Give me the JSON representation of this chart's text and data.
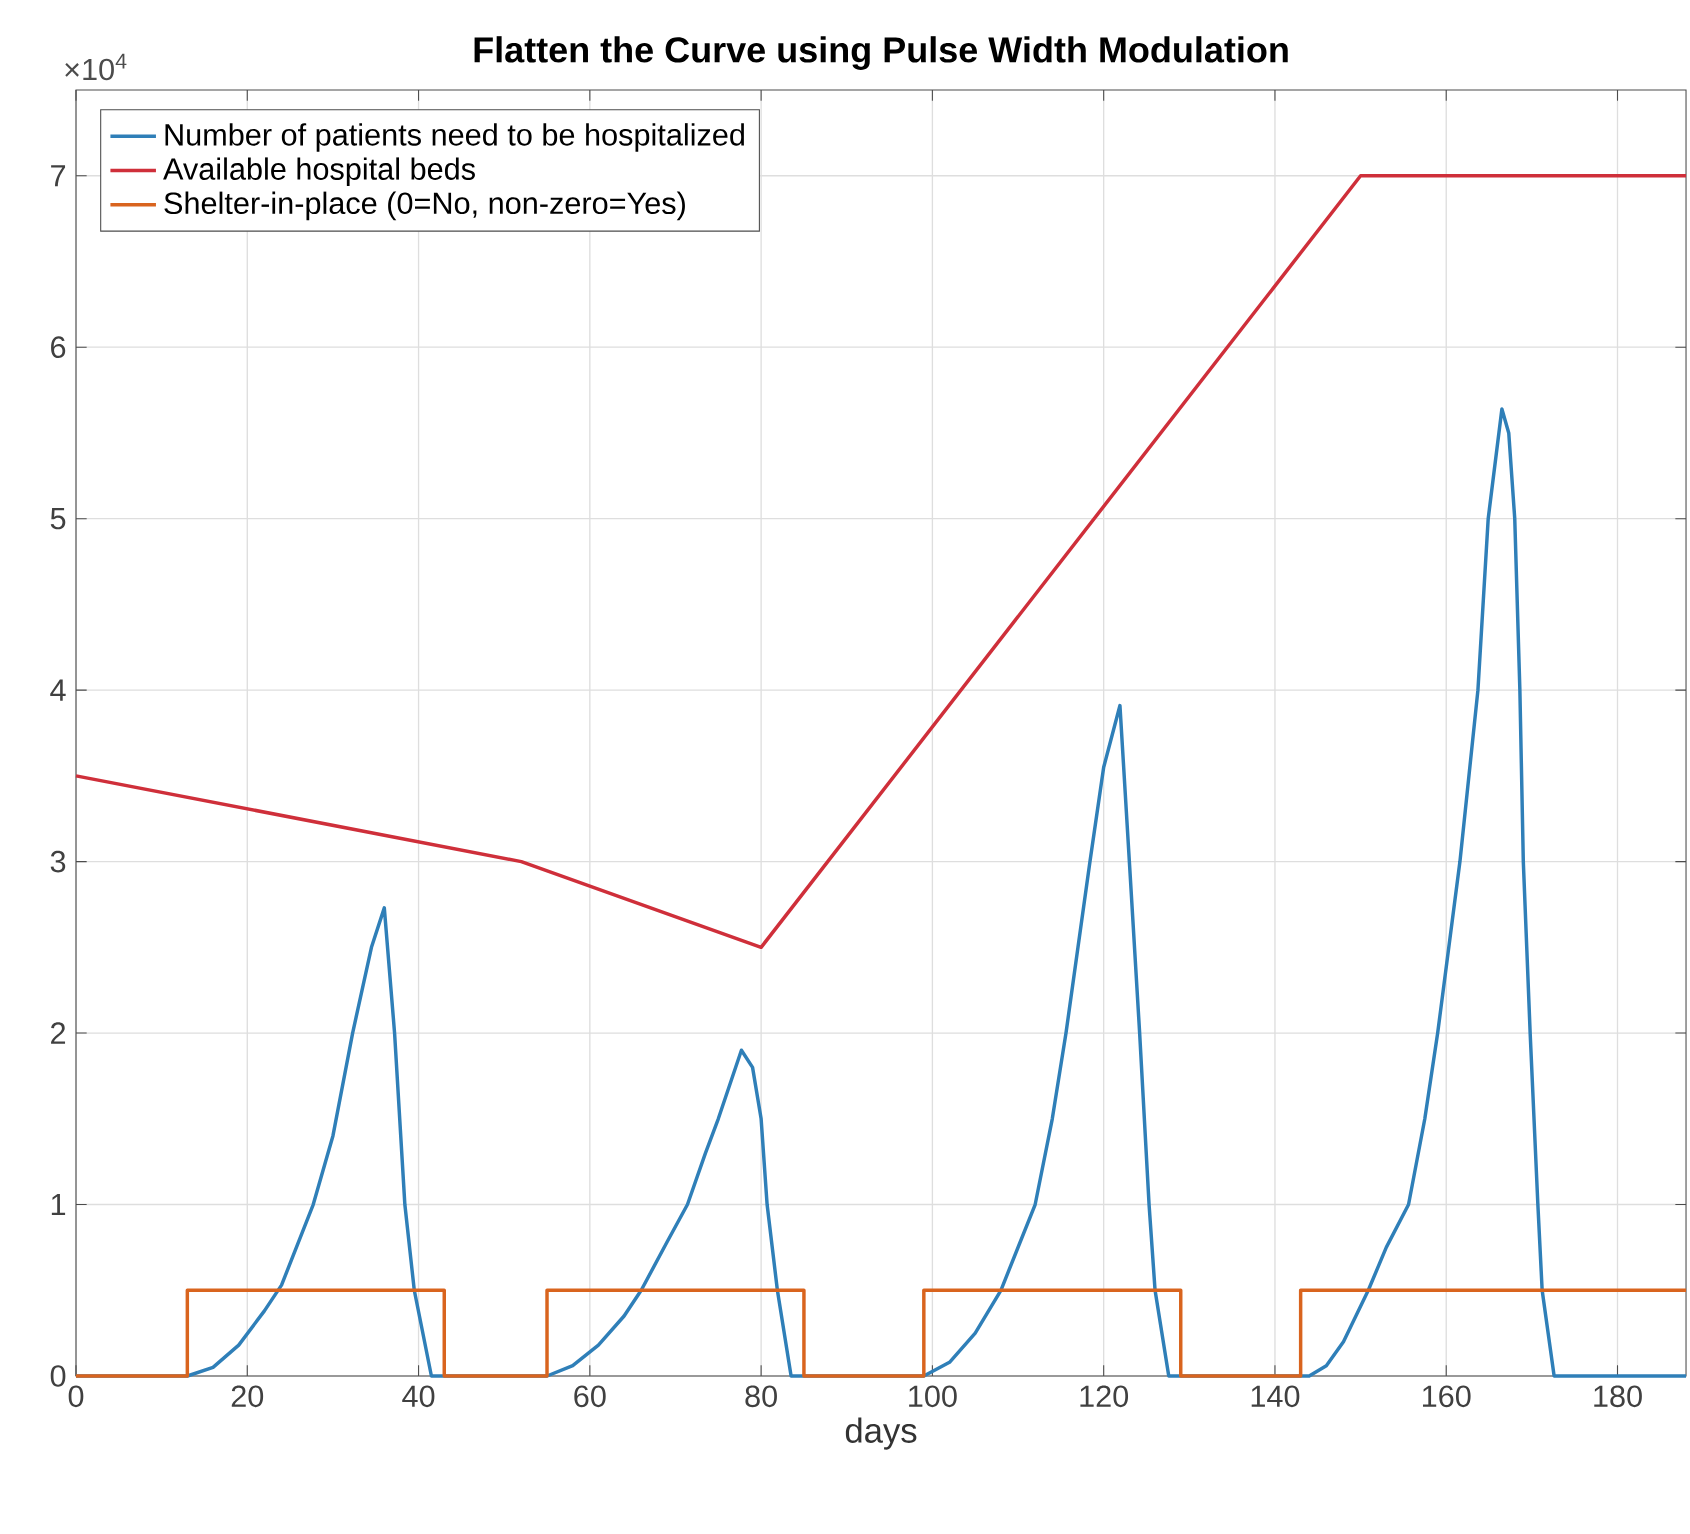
{
  "chart_data": {
    "type": "line",
    "title": "Flatten the Curve using Pulse Width Modulation",
    "xlabel": "days",
    "annotations": [
      "×10$^{4}$"
    ],
    "xlim": [
      0,
      188
    ],
    "ylim": [
      0,
      7.5
    ],
    "xticks": [
      0,
      20,
      40,
      60,
      80,
      100,
      120,
      140,
      160,
      180
    ],
    "yticks": [
      0,
      1,
      2,
      3,
      4,
      5,
      6,
      7
    ],
    "grid": true,
    "legend": "top left",
    "marker": "none",
    "line_style": "solid",
    "series": [
      {
        "name": "Number of patients need to be hospitalized",
        "color": "#2f7fb8",
        "x": [
          0,
          10,
          13,
          16,
          19,
          22,
          24,
          27.7,
          30,
          32.3,
          34.5,
          36,
          37.2,
          38.4,
          39.5,
          41.5,
          50,
          55,
          58,
          61,
          64,
          66,
          69,
          71.4,
          73.5,
          75,
          77.7,
          79,
          80,
          80.7,
          81.9,
          83.5,
          90,
          99,
          102,
          105,
          108,
          110,
          112,
          114,
          115.6,
          117,
          118.4,
          120,
          121.9,
          123,
          124.2,
          125.3,
          126,
          127.6,
          135,
          144,
          146,
          148,
          150.9,
          153,
          155.6,
          157.5,
          159,
          161.6,
          163.7,
          164.9,
          166.5,
          167.3,
          168,
          168.6,
          169,
          169.8,
          170.7,
          171.2,
          172.6,
          188
        ],
        "values": [
          0,
          0,
          0,
          0.05,
          0.18,
          0.38,
          0.53,
          1.0,
          1.4,
          2.0,
          2.5,
          2.73,
          2.0,
          1.0,
          0.5,
          0,
          0,
          0,
          0.06,
          0.18,
          0.35,
          0.5,
          0.78,
          1.0,
          1.3,
          1.5,
          1.9,
          1.8,
          1.5,
          1.0,
          0.5,
          0,
          0,
          0,
          0.08,
          0.25,
          0.5,
          0.75,
          1.0,
          1.5,
          2.0,
          2.5,
          3.0,
          3.55,
          3.91,
          3.0,
          2.0,
          1.0,
          0.5,
          0,
          0,
          0,
          0.06,
          0.2,
          0.5,
          0.75,
          1.0,
          1.5,
          2.0,
          3.0,
          4.0,
          5.0,
          5.64,
          5.5,
          5.0,
          4.0,
          3.0,
          2.0,
          1.0,
          0.5,
          0,
          0
        ]
      },
      {
        "name": "Available hospital beds",
        "color": "#cf2f3a",
        "x": [
          0,
          52,
          80,
          150,
          188
        ],
        "values": [
          3.5,
          3.0,
          2.5,
          7,
          7
        ]
      },
      {
        "name": "Shelter-in-place (0=No, non-zero=Yes)",
        "type": "step",
        "color": "#d9641e",
        "x": [
          0,
          13,
          43,
          55,
          85,
          99,
          129,
          143,
          188
        ],
        "values": [
          0,
          0.5,
          0,
          0.5,
          0,
          0.5,
          0,
          0.5,
          0.5
        ]
      }
    ]
  }
}
